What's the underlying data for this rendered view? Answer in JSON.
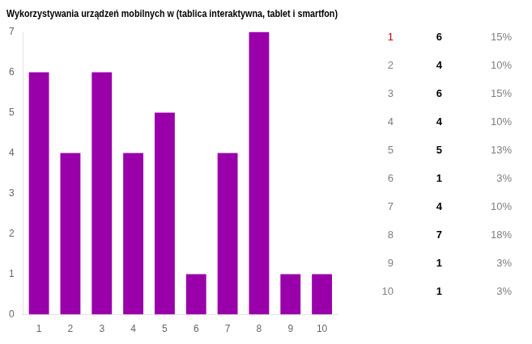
{
  "chart_data": {
    "type": "bar",
    "title": "Wykorzystywania urządzeń mobilnych w (tablica interaktywna, tablet i smartfon)",
    "categories": [
      1,
      2,
      3,
      4,
      5,
      6,
      7,
      8,
      9,
      10
    ],
    "values": [
      6,
      4,
      6,
      4,
      5,
      1,
      4,
      7,
      1,
      1
    ],
    "color": "#9900AA",
    "ylim": [
      0,
      7
    ],
    "yticks": [
      0,
      1,
      2,
      3,
      4,
      5,
      6,
      7
    ],
    "grid": false,
    "table": {
      "count_color": "#000000",
      "share_color": "#808080",
      "rows": [
        {
          "rank": 1,
          "count": 6,
          "share": 15,
          "share_label": "15%",
          "color": "#CC0000"
        },
        {
          "rank": 2,
          "count": 4,
          "share": 10,
          "share_label": "10%",
          "color": "#808080"
        },
        {
          "rank": 3,
          "count": 6,
          "share": 15,
          "share_label": "15%",
          "color": "#808080"
        },
        {
          "rank": 4,
          "count": 4,
          "share": 10,
          "share_label": "10%",
          "color": "#808080"
        },
        {
          "rank": 5,
          "count": 5,
          "share": 13,
          "share_label": "13%",
          "color": "#808080"
        },
        {
          "rank": 6,
          "count": 1,
          "share": 3,
          "share_label": "3%",
          "color": "#808080"
        },
        {
          "rank": 7,
          "count": 4,
          "share": 10,
          "share_label": "10%",
          "color": "#808080"
        },
        {
          "rank": 8,
          "count": 7,
          "share": 18,
          "share_label": "18%",
          "color": "#808080"
        },
        {
          "rank": 9,
          "count": 1,
          "share": 3,
          "share_label": "3%",
          "color": "#808080"
        },
        {
          "rank": 10,
          "count": 1,
          "share": 3,
          "share_label": "3%",
          "color": "#808080"
        }
      ]
    }
  }
}
